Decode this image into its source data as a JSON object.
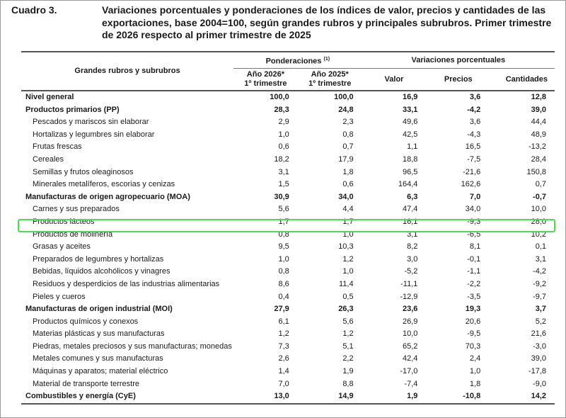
{
  "caption": {
    "number": "Cuadro 3.",
    "title": "Variaciones porcentuales y ponderaciones de los índices de valor, precios y cantidades de las exportaciones, base 2004=100, según grandes rubros y principales subrubros. Primer trimestre de 2026 respecto al primer trimestre de 2025"
  },
  "header": {
    "name_col": "Grandes rubros y subrubros",
    "ponderaciones": "Ponderaciones",
    "ponderaciones_note": "(1)",
    "variaciones": "Variaciones porcentuales",
    "year2026_line1": "Año 2026*",
    "year2026_line2": "1º trimestre",
    "year2025_line1": "Año 2025*",
    "year2025_line2": "1º trimestre",
    "valor": "Valor",
    "precios": "Precios",
    "cantidades": "Cantidades"
  },
  "rows": [
    {
      "name": "Nivel general",
      "bold": true,
      "p2026": "100,0",
      "p2025": "100,0",
      "valor": "16,9",
      "precios": "3,6",
      "cantidades": "12,8"
    },
    {
      "name": "Productos primarios (PP)",
      "bold": true,
      "p2026": "28,3",
      "p2025": "24,8",
      "valor": "33,1",
      "precios": "-4,2",
      "cantidades": "39,0"
    },
    {
      "name": "Pescados y mariscos sin elaborar",
      "bold": false,
      "p2026": "2,9",
      "p2025": "2,3",
      "valor": "49,6",
      "precios": "3,6",
      "cantidades": "44,4"
    },
    {
      "name": "Hortalizas y legumbres sin elaborar",
      "bold": false,
      "p2026": "1,0",
      "p2025": "0,8",
      "valor": "42,5",
      "precios": "-4,3",
      "cantidades": "48,9"
    },
    {
      "name": "Frutas frescas",
      "bold": false,
      "p2026": "0,6",
      "p2025": "0,7",
      "valor": "1,1",
      "precios": "16,5",
      "cantidades": "-13,2"
    },
    {
      "name": "Cereales",
      "bold": false,
      "p2026": "18,2",
      "p2025": "17,9",
      "valor": "18,8",
      "precios": "-7,5",
      "cantidades": "28,4"
    },
    {
      "name": "Semillas y frutos oleaginosos",
      "bold": false,
      "p2026": "3,1",
      "p2025": "1,8",
      "valor": "96,5",
      "precios": "-21,6",
      "cantidades": "150,8"
    },
    {
      "name": "Minerales metalíferos, escorias y cenizas",
      "bold": false,
      "p2026": "1,5",
      "p2025": "0,6",
      "valor": "164,4",
      "precios": "162,6",
      "cantidades": "0,7"
    },
    {
      "name": "Manufacturas de origen agropecuario (MOA)",
      "bold": true,
      "p2026": "30,9",
      "p2025": "34,0",
      "valor": "6,3",
      "precios": "7,0",
      "cantidades": "-0,7"
    },
    {
      "name": "Carnes y sus preparados",
      "bold": false,
      "p2026": "5,6",
      "p2025": "4,4",
      "valor": "47,4",
      "precios": "34,0",
      "cantidades": "10,0"
    },
    {
      "name": "Productos lácteos",
      "bold": false,
      "p2026": "1,7",
      "p2025": "1,7",
      "valor": "16,1",
      "precios": "-9,3",
      "cantidades": "28,0"
    },
    {
      "name": "Productos de molinería",
      "bold": false,
      "p2026": "0,8",
      "p2025": "1,0",
      "valor": "3,1",
      "precios": "-6,5",
      "cantidades": "10,2"
    },
    {
      "name": "Grasas y aceites",
      "bold": false,
      "p2026": "9,5",
      "p2025": "10,3",
      "valor": "8,2",
      "precios": "8,1",
      "cantidades": "0,1"
    },
    {
      "name": "Preparados de legumbres y hortalizas",
      "bold": false,
      "p2026": "1,0",
      "p2025": "1,2",
      "valor": "3,0",
      "precios": "-0,1",
      "cantidades": "3,1"
    },
    {
      "name": "Bebidas, líquidos alcohólicos y vinagres",
      "bold": false,
      "p2026": "0,8",
      "p2025": "1,0",
      "valor": "-5,2",
      "precios": "-1,1",
      "cantidades": "-4,2"
    },
    {
      "name": "Residuos y desperdicios de las industrias alimentarias",
      "bold": false,
      "p2026": "8,6",
      "p2025": "11,4",
      "valor": "-11,1",
      "precios": "-2,2",
      "cantidades": "-9,2"
    },
    {
      "name": "Pieles y cueros",
      "bold": false,
      "p2026": "0,4",
      "p2025": "0,5",
      "valor": "-12,9",
      "precios": "-3,5",
      "cantidades": "-9,7"
    },
    {
      "name": "Manufacturas de origen industrial (MOI)",
      "bold": true,
      "p2026": "27,9",
      "p2025": "26,3",
      "valor": "23,6",
      "precios": "19,3",
      "cantidades": "3,7"
    },
    {
      "name": "Productos químicos y conexos",
      "bold": false,
      "p2026": "6,1",
      "p2025": "5,6",
      "valor": "26,9",
      "precios": "20,6",
      "cantidades": "5,2"
    },
    {
      "name": "Materias plásticas y sus manufacturas",
      "bold": false,
      "p2026": "1,2",
      "p2025": "1,2",
      "valor": "10,0",
      "precios": "-9,5",
      "cantidades": "21,6"
    },
    {
      "name": "Piedras, metales preciosos y sus manufacturas; monedas",
      "bold": false,
      "p2026": "7,3",
      "p2025": "5,1",
      "valor": "65,2",
      "precios": "70,3",
      "cantidades": "-3,0"
    },
    {
      "name": "Metales comunes y sus manufacturas",
      "bold": false,
      "p2026": "2,6",
      "p2025": "2,2",
      "valor": "42,4",
      "precios": "2,4",
      "cantidades": "39,0"
    },
    {
      "name": "Máquinas y aparatos; material eléctrico",
      "bold": false,
      "p2026": "1,4",
      "p2025": "1,9",
      "valor": "-17,0",
      "precios": "1,0",
      "cantidades": "-17,8"
    },
    {
      "name": "Material de transporte terrestre",
      "bold": false,
      "p2026": "7,0",
      "p2025": "8,8",
      "valor": "-7,4",
      "precios": "1,8",
      "cantidades": "-9,0"
    },
    {
      "name": "Combustibles y energía (CyE)",
      "bold": true,
      "p2026": "13,0",
      "p2025": "14,9",
      "valor": "1,9",
      "precios": "-10,8",
      "cantidades": "14,2"
    }
  ],
  "highlight_color": "#4be04b"
}
